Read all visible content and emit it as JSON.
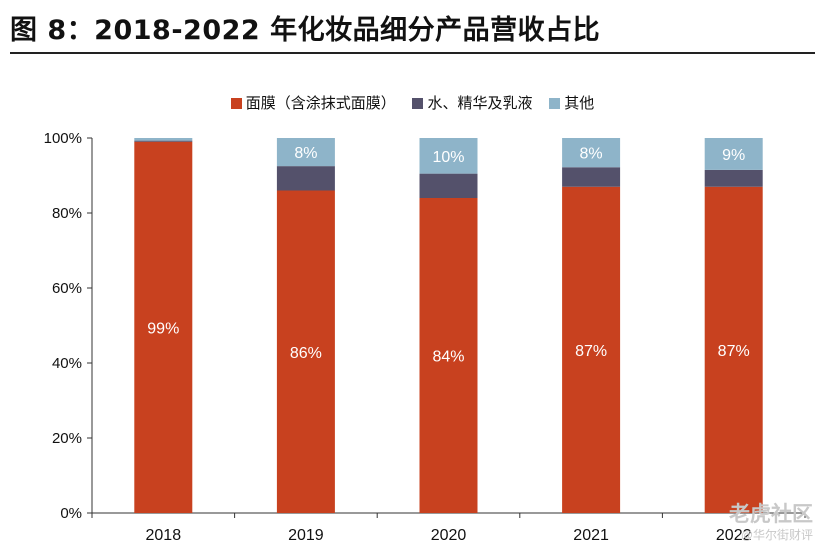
{
  "figure_title": "图 8：2018-2022 年化妆品细分产品营收占比",
  "watermark": {
    "main": "老虎社区",
    "sub": "@华尔街财评"
  },
  "chart_data": {
    "type": "bar",
    "stacked": true,
    "categories": [
      "2018",
      "2019",
      "2020",
      "2021",
      "2022"
    ],
    "series": [
      {
        "name": "面膜（含涂抹式面膜）",
        "color": "#c8411f",
        "values": [
          99,
          86,
          84,
          87,
          87
        ],
        "labels": [
          "99%",
          "86%",
          "84%",
          "87%",
          "87%"
        ]
      },
      {
        "name": "水、精华及乳液",
        "color": "#54516b",
        "values": [
          0.3,
          6.5,
          6.5,
          5.2,
          4.5
        ],
        "labels": [
          "",
          "",
          "",
          "",
          ""
        ]
      },
      {
        "name": "其他",
        "color": "#8eb4c9",
        "values": [
          0.7,
          7.5,
          9.5,
          7.8,
          8.5
        ],
        "labels": [
          "",
          "8%",
          "10%",
          "8%",
          "9%"
        ]
      }
    ],
    "ylim": [
      0,
      100
    ],
    "yticks": [
      "0%",
      "20%",
      "40%",
      "60%",
      "80%",
      "100%"
    ],
    "legend_position": "top-center",
    "grid": false
  }
}
